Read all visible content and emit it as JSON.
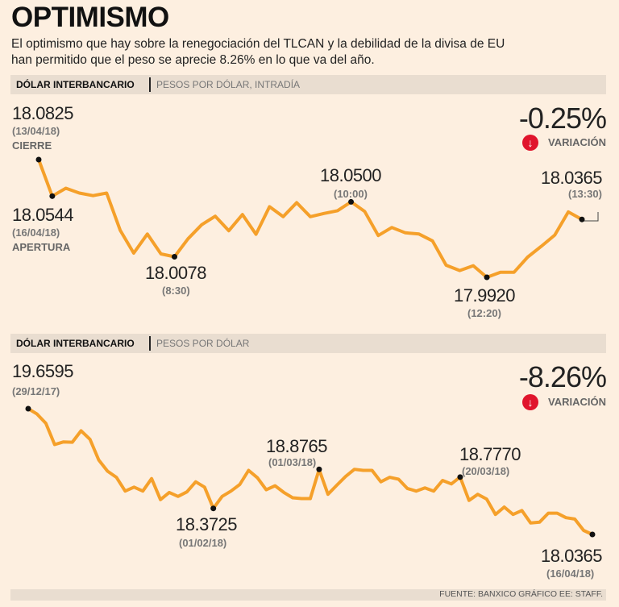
{
  "header": {
    "title": "OPTIMISMO",
    "subtitle": "El optimismo que hay sobre la renegociación del TLCAN y la debilidad de la divisa de EU han permitido que el peso se aprecie 8.26% en lo que va del año."
  },
  "colors": {
    "line": "#f5a02a",
    "marker": "#111111",
    "down_arrow": "#e0142c",
    "background": "#fdefe0",
    "bar": "#e9ddd0"
  },
  "chart_data": [
    {
      "type": "line",
      "header_bold": "DÓLAR INTERBANCARIO",
      "header_light": "PESOS POR DÓLAR, INTRADÍA",
      "variation_value": "-0.25%",
      "variation_label": "VARIACIÓN",
      "variation_icon": "down-arrow-icon",
      "ylim": [
        17.992,
        18.0825
      ],
      "grid": false,
      "values": [
        18.0825,
        18.0544,
        18.0605,
        18.0568,
        18.0548,
        18.0568,
        18.0282,
        18.0106,
        18.0253,
        18.01,
        18.0078,
        18.0216,
        18.0324,
        18.039,
        18.0278,
        18.0403,
        18.0251,
        18.0463,
        18.0386,
        18.0494,
        18.0386,
        18.0411,
        18.0432,
        18.05,
        18.0427,
        18.0241,
        18.0303,
        18.0262,
        18.0253,
        18.02,
        18.0013,
        17.9972,
        18.0009,
        17.992,
        17.9959,
        17.9959,
        18.0075,
        18.0158,
        18.0245,
        18.0423,
        18.0365
      ],
      "annotations": [
        {
          "index": 0,
          "value": "18.0825",
          "date": "(13/04/18)",
          "note": "CIERRE"
        },
        {
          "index": 1,
          "value": "18.0544",
          "date": "(16/04/18)",
          "note": "APERTURA"
        },
        {
          "index": 10,
          "value": "18.0078",
          "date": "(8:30)"
        },
        {
          "index": 23,
          "value": "18.0500",
          "date": "(10:00)"
        },
        {
          "index": 33,
          "value": "17.9920",
          "date": "(12:20)"
        },
        {
          "index": 40,
          "value": "18.0365",
          "date": "(13:30)"
        }
      ]
    },
    {
      "type": "line",
      "header_bold": "DÓLAR INTERBANCARIO",
      "header_light": "PESOS POR DÓLAR",
      "variation_value": "-8.26%",
      "variation_label": "VARIACIÓN",
      "variation_icon": "down-arrow-icon",
      "ylim": [
        18.0365,
        19.6595
      ],
      "grid": false,
      "values": [
        19.6595,
        19.5909,
        19.4708,
        19.1963,
        19.2306,
        19.2272,
        19.3747,
        19.2649,
        18.9973,
        18.8532,
        18.7743,
        18.5959,
        18.6474,
        18.5959,
        18.7571,
        18.4861,
        18.5787,
        18.5273,
        18.5856,
        18.716,
        18.6474,
        18.3725,
        18.5273,
        18.5959,
        18.6817,
        18.8635,
        18.7674,
        18.613,
        18.6645,
        18.5787,
        18.5101,
        18.4998,
        18.4998,
        18.8765,
        18.5547,
        18.6714,
        18.7846,
        18.8772,
        18.8635,
        18.8635,
        18.716,
        18.7743,
        18.7503,
        18.6302,
        18.5959,
        18.6371,
        18.5959,
        18.7331,
        18.6885,
        18.777,
        18.4758,
        18.5547,
        18.493,
        18.294,
        18.39,
        18.294,
        18.3454,
        18.1842,
        18.1945,
        18.3111,
        18.3111,
        18.2528,
        18.2356,
        18.0881,
        18.0365
      ],
      "annotations": [
        {
          "index": 0,
          "value": "19.6595",
          "date": "(29/12/17)"
        },
        {
          "index": 21,
          "value": "18.3725",
          "date": "(01/02/18)"
        },
        {
          "index": 33,
          "value": "18.8765",
          "date": "(01/03/18)"
        },
        {
          "index": 49,
          "value": "18.7770",
          "date": "(20/03/18)"
        },
        {
          "index": 64,
          "value": "18.0365",
          "date": "(16/04/18)"
        }
      ]
    }
  ],
  "footer": {
    "source": "FUENTE: BANXICO GRÁFICO EE: STAFF."
  }
}
